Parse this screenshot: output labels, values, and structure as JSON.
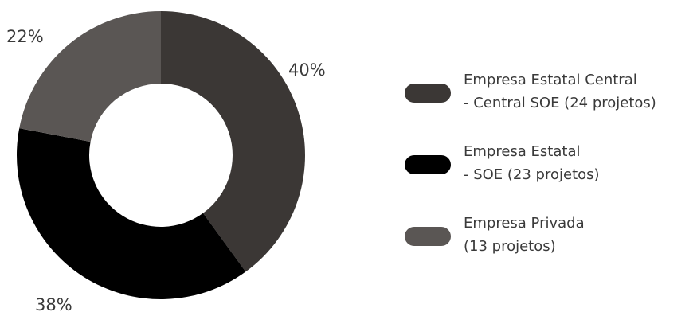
{
  "chart_data": {
    "type": "pie",
    "donut": true,
    "title": "",
    "categories": [
      "Empresa Estatal Central - Central SOE (24 projetos)",
      "Empresa Estatal - SOE (23 projetos)",
      "Empresa Privada (13 projetos)"
    ],
    "values": [
      40,
      38,
      22
    ],
    "value_labels": [
      "40%",
      "38%",
      "22%"
    ],
    "colors": [
      "#3b3735",
      "#000000",
      "#5a5654"
    ],
    "legend_placement": "right",
    "legend": [
      {
        "line1": "Empresa Estatal Central",
        "line2": "- Central SOE (24 projetos)",
        "color": "#3b3735"
      },
      {
        "line1": "Empresa Estatal",
        "line2": "- SOE (23 projetos)",
        "color": "#000000"
      },
      {
        "line1": "Empresa Privada",
        "line2": "(13 projetos)",
        "color": "#5a5654"
      }
    ]
  }
}
